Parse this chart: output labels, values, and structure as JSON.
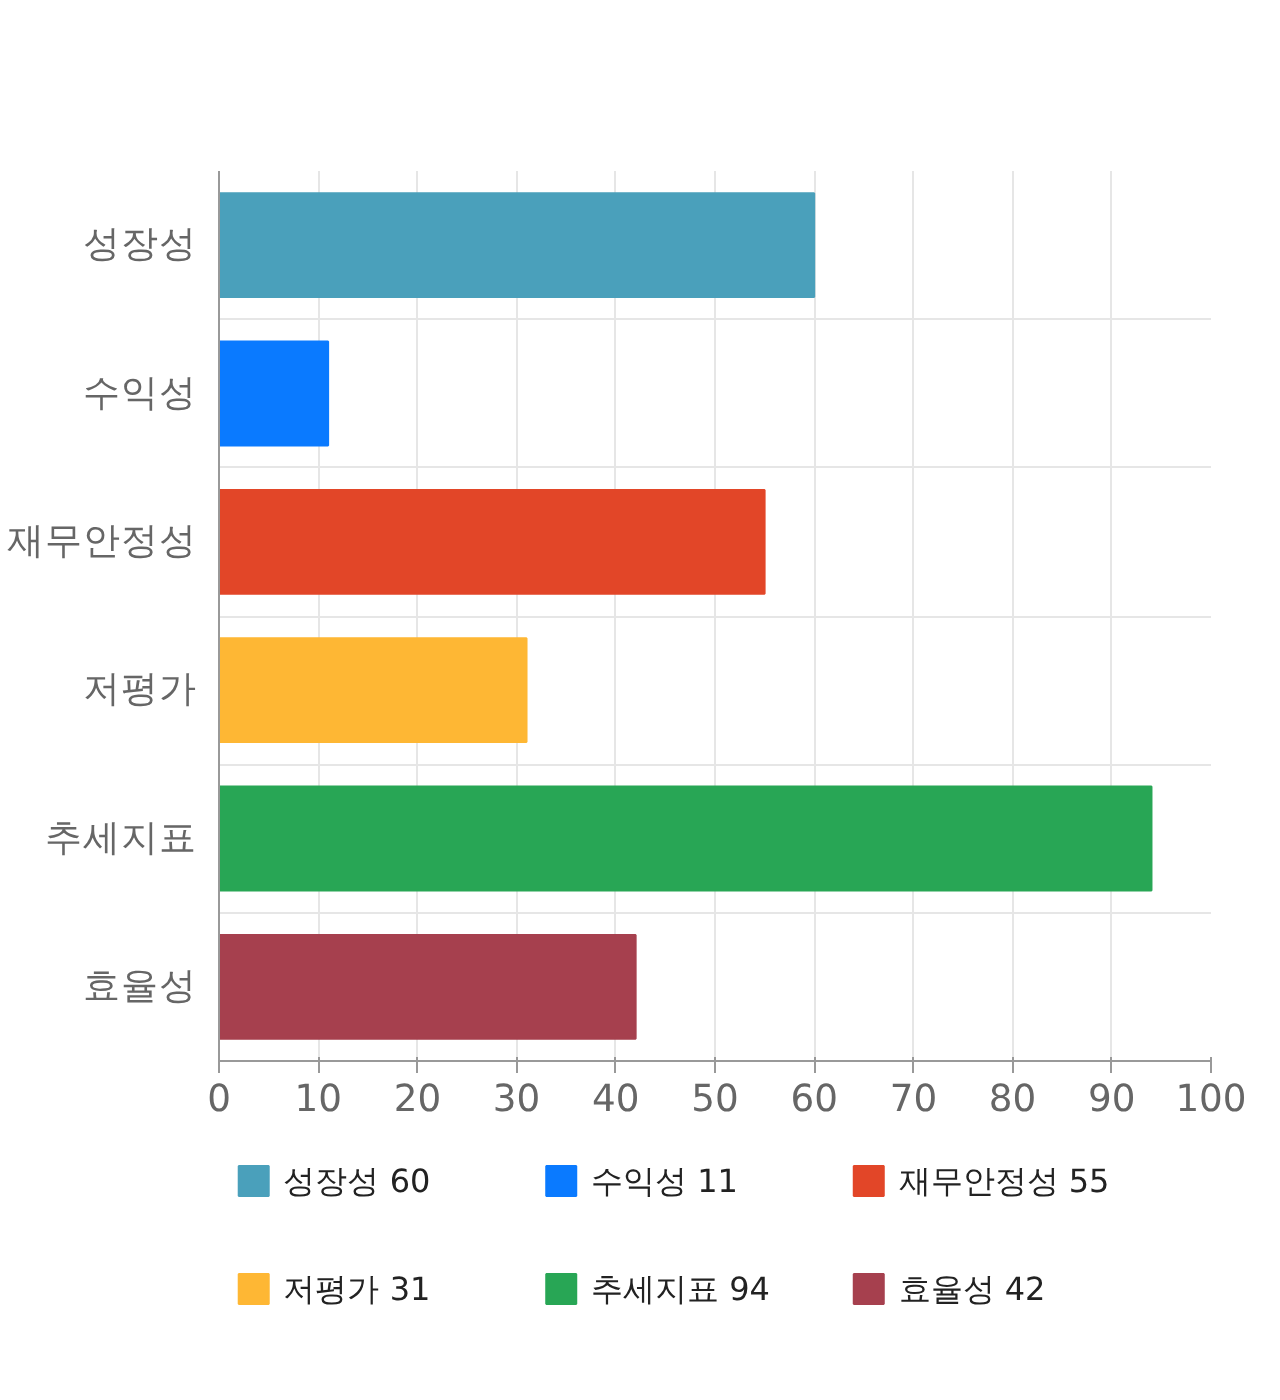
{
  "chart_data": {
    "type": "bar",
    "orientation": "horizontal",
    "categories": [
      "성장성",
      "수익성",
      "재무안정성",
      "저평가",
      "추세지표",
      "효율성"
    ],
    "series": [
      {
        "name": "성장성 60",
        "color": "#4aa0bb",
        "values": [
          60,
          null,
          null,
          null,
          null,
          null
        ]
      },
      {
        "name": "수익성 11",
        "color": "#0a7aff",
        "values": [
          null,
          11,
          null,
          null,
          null,
          null
        ]
      },
      {
        "name": "재무안정성 55",
        "color": "#e24628",
        "values": [
          null,
          null,
          55,
          null,
          null,
          null
        ]
      },
      {
        "name": "저평가 31",
        "color": "#feb734",
        "values": [
          null,
          null,
          null,
          31,
          null,
          null
        ]
      },
      {
        "name": "추세지표 94",
        "color": "#28a655",
        "values": [
          null,
          null,
          null,
          null,
          94,
          null
        ]
      },
      {
        "name": "효율성 42",
        "color": "#a6404e",
        "values": [
          null,
          null,
          null,
          null,
          null,
          42
        ]
      }
    ],
    "xlim": [
      0,
      100
    ],
    "xticks": [
      0,
      10,
      20,
      30,
      40,
      50,
      60,
      70,
      80,
      90,
      100
    ],
    "grid": true,
    "legend": "bottom"
  }
}
